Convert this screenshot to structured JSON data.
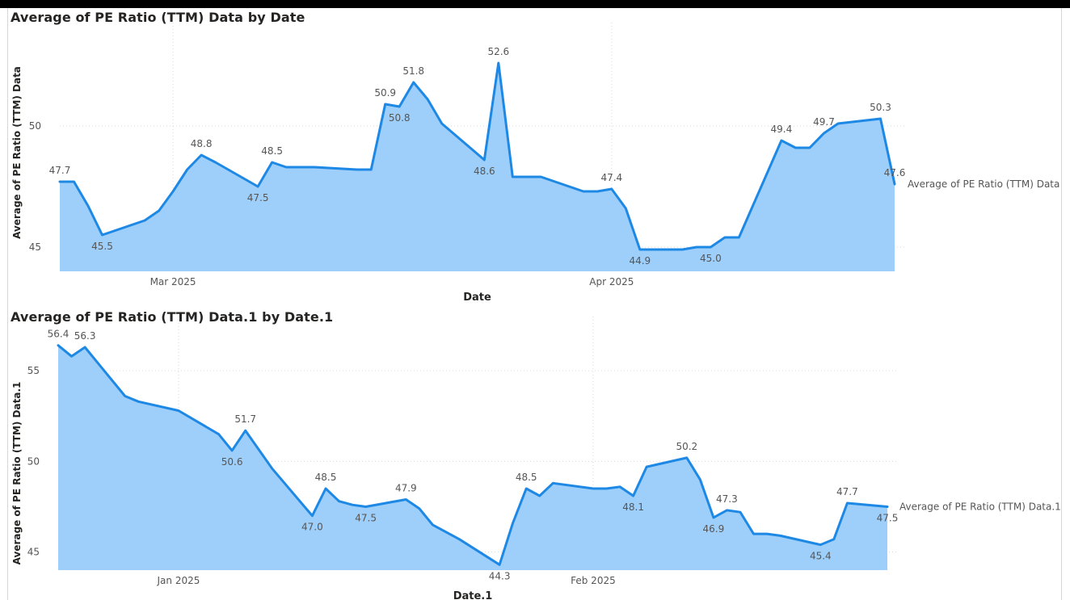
{
  "page": {
    "background": "#ffffff",
    "line_color": "#1e88e5",
    "area_color": "#9ecffa"
  },
  "chart_data": [
    {
      "type": "area",
      "title": "Average of PE Ratio (TTM) Data by Date",
      "xlabel": "Date",
      "ylabel": "Average of PE Ratio (TTM) Data",
      "ylim": [
        44.0,
        53.6
      ],
      "y_ticks": [
        45,
        50
      ],
      "x_ticks": [
        {
          "label": "Mar 2025",
          "date": "2025-03-01"
        },
        {
          "label": "Apr 2025",
          "date": "2025-04-01"
        }
      ],
      "xlim": [
        "2025-02-21",
        "2025-04-21"
      ],
      "grid": "dotted",
      "series": [
        {
          "name": "Average of PE Ratio (TTM) Data",
          "end_label": "Average of PE Ratio (TTM) Data",
          "x": [
            "2025-02-21",
            "2025-02-22",
            "2025-02-23",
            "2025-02-24",
            "2025-02-27",
            "2025-02-28",
            "2025-03-01",
            "2025-03-02",
            "2025-03-03",
            "2025-03-04",
            "2025-03-07",
            "2025-03-08",
            "2025-03-09",
            "2025-03-10",
            "2025-03-11",
            "2025-03-14",
            "2025-03-15",
            "2025-03-16",
            "2025-03-17",
            "2025-03-18",
            "2025-03-19",
            "2025-03-20",
            "2025-03-23",
            "2025-03-24",
            "2025-03-25",
            "2025-03-26",
            "2025-03-27",
            "2025-03-30",
            "2025-03-31",
            "2025-04-01",
            "2025-04-02",
            "2025-04-03",
            "2025-04-06",
            "2025-04-07",
            "2025-04-08",
            "2025-04-09",
            "2025-04-10",
            "2025-04-13",
            "2025-04-14",
            "2025-04-15",
            "2025-04-16",
            "2025-04-17",
            "2025-04-20",
            "2025-04-21"
          ],
          "y": [
            47.7,
            47.7,
            46.7,
            45.5,
            46.1,
            46.5,
            47.3,
            48.2,
            48.8,
            48.5,
            47.5,
            48.5,
            48.3,
            48.3,
            48.3,
            48.2,
            48.2,
            50.9,
            50.8,
            51.8,
            51.1,
            50.1,
            48.6,
            52.6,
            47.9,
            47.9,
            47.9,
            47.3,
            47.3,
            47.4,
            46.6,
            44.9,
            44.9,
            45.0,
            45.0,
            45.4,
            45.4,
            49.4,
            49.1,
            49.1,
            49.7,
            50.1,
            50.3,
            47.6
          ],
          "data_labels": [
            {
              "i": 0,
              "text": "47.7",
              "pos": "above"
            },
            {
              "i": 3,
              "text": "45.5",
              "pos": "below"
            },
            {
              "i": 8,
              "text": "48.8",
              "pos": "above"
            },
            {
              "i": 10,
              "text": "47.5",
              "pos": "below"
            },
            {
              "i": 11,
              "text": "48.5",
              "pos": "above"
            },
            {
              "i": 17,
              "text": "50.9",
              "pos": "above"
            },
            {
              "i": 18,
              "text": "50.8",
              "pos": "below"
            },
            {
              "i": 19,
              "text": "51.8",
              "pos": "above"
            },
            {
              "i": 22,
              "text": "48.6",
              "pos": "below"
            },
            {
              "i": 23,
              "text": "52.6",
              "pos": "above"
            },
            {
              "i": 29,
              "text": "47.4",
              "pos": "above"
            },
            {
              "i": 31,
              "text": "44.9",
              "pos": "below"
            },
            {
              "i": 34,
              "text": "45.0",
              "pos": "below"
            },
            {
              "i": 37,
              "text": "49.4",
              "pos": "above"
            },
            {
              "i": 40,
              "text": "49.7",
              "pos": "above"
            },
            {
              "i": 42,
              "text": "50.3",
              "pos": "above"
            },
            {
              "i": 43,
              "text": "47.6",
              "pos": "above"
            }
          ]
        }
      ]
    },
    {
      "type": "area",
      "title": "Average of PE Ratio (TTM) Data.1 by Date.1",
      "xlabel": "Date.1",
      "ylabel": "Average of PE Ratio (TTM) Data.1",
      "ylim": [
        44.0,
        57.1
      ],
      "y_ticks": [
        45,
        50,
        55
      ],
      "x_ticks": [
        {
          "label": "Jan 2025",
          "date": "2025-01-01"
        },
        {
          "label": "Feb 2025",
          "date": "2025-02-01"
        }
      ],
      "xlim": [
        "2024-12-23",
        "2025-02-23"
      ],
      "grid": "dotted",
      "series": [
        {
          "name": "Average of PE Ratio (TTM) Data.1",
          "end_label": "Average of PE Ratio (TTM) Data.1",
          "x": [
            "2024-12-23",
            "2024-12-24",
            "2024-12-25",
            "2024-12-28",
            "2024-12-29",
            "2025-01-01",
            "2025-01-04",
            "2025-01-05",
            "2025-01-06",
            "2025-01-08",
            "2025-01-11",
            "2025-01-12",
            "2025-01-13",
            "2025-01-14",
            "2025-01-15",
            "2025-01-18",
            "2025-01-19",
            "2025-01-20",
            "2025-01-22",
            "2025-01-25",
            "2025-01-26",
            "2025-01-27",
            "2025-01-28",
            "2025-01-29",
            "2025-02-01",
            "2025-02-02",
            "2025-02-03",
            "2025-02-04",
            "2025-02-05",
            "2025-02-08",
            "2025-02-09",
            "2025-02-10",
            "2025-02-11",
            "2025-02-12",
            "2025-02-13",
            "2025-02-14",
            "2025-02-15",
            "2025-02-18",
            "2025-02-19",
            "2025-02-20",
            "2025-02-23"
          ],
          "y": [
            56.4,
            55.8,
            56.3,
            53.6,
            53.3,
            52.8,
            51.5,
            50.6,
            51.7,
            49.6,
            47.0,
            48.5,
            47.8,
            47.6,
            47.5,
            47.9,
            47.4,
            46.5,
            45.7,
            44.3,
            46.6,
            48.5,
            48.1,
            48.8,
            48.5,
            48.5,
            48.6,
            48.1,
            49.7,
            50.2,
            49.0,
            46.9,
            47.3,
            47.2,
            46.0,
            46.0,
            45.9,
            45.4,
            45.7,
            47.7,
            47.5
          ],
          "data_labels": [
            {
              "i": 0,
              "text": "56.4",
              "pos": "above"
            },
            {
              "i": 2,
              "text": "56.3",
              "pos": "above"
            },
            {
              "i": 7,
              "text": "50.6",
              "pos": "below"
            },
            {
              "i": 8,
              "text": "51.7",
              "pos": "above"
            },
            {
              "i": 10,
              "text": "47.0",
              "pos": "below"
            },
            {
              "i": 11,
              "text": "48.5",
              "pos": "above"
            },
            {
              "i": 14,
              "text": "47.5",
              "pos": "below"
            },
            {
              "i": 15,
              "text": "47.9",
              "pos": "above"
            },
            {
              "i": 19,
              "text": "44.3",
              "pos": "below"
            },
            {
              "i": 21,
              "text": "48.5",
              "pos": "above"
            },
            {
              "i": 27,
              "text": "48.1",
              "pos": "below"
            },
            {
              "i": 29,
              "text": "50.2",
              "pos": "above"
            },
            {
              "i": 31,
              "text": "46.9",
              "pos": "below"
            },
            {
              "i": 32,
              "text": "47.3",
              "pos": "above"
            },
            {
              "i": 37,
              "text": "45.4",
              "pos": "below"
            },
            {
              "i": 39,
              "text": "47.7",
              "pos": "above"
            },
            {
              "i": 40,
              "text": "47.5",
              "pos": "below"
            }
          ]
        }
      ]
    }
  ]
}
